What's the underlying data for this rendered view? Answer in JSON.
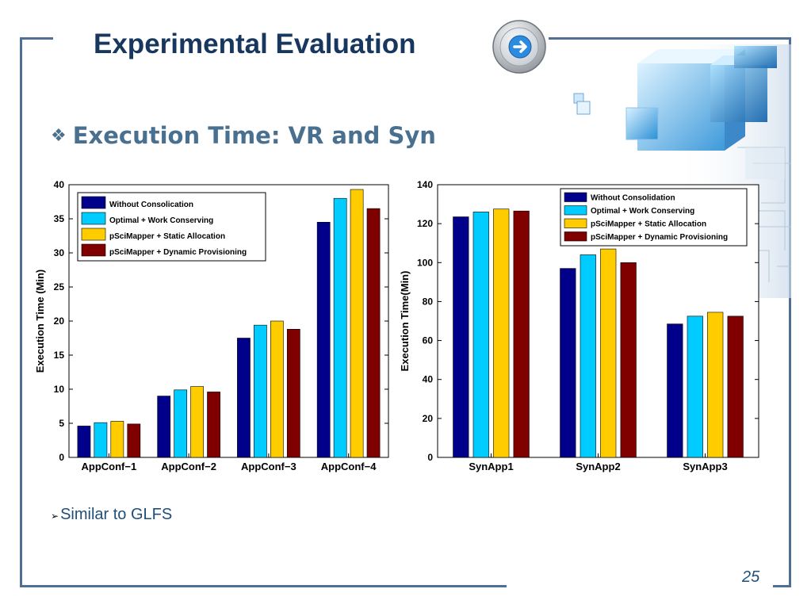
{
  "slide": {
    "title": "Experimental Evaluation",
    "bullet_glyph": "❖",
    "heading": "Execution Time: VR and Syn",
    "sub_bullet_glyph": "➢",
    "sub_bullet": "Similar to GLFS",
    "page_number": "25",
    "accent_color": "#17375e",
    "frame_color": "#4f6f97"
  },
  "icons": {
    "arrow_button": "right-arrow-icon",
    "decoration": "blue-cubes-decoration"
  },
  "chart_data": [
    {
      "type": "bar",
      "title": "",
      "xlabel": "",
      "ylabel": "Execution Time (Min)",
      "ylim": [
        0,
        40
      ],
      "yticks": [
        0,
        5,
        10,
        15,
        20,
        25,
        30,
        35,
        40
      ],
      "grid": false,
      "legend_position": "top-left",
      "categories": [
        "AppConf−1",
        "AppConf−2",
        "AppConf−3",
        "AppConf−4"
      ],
      "series": [
        {
          "name": "Without Consolication",
          "color": "#00008b",
          "values": [
            4.6,
            9.0,
            17.5,
            34.5
          ]
        },
        {
          "name": "Optimal +  Work Conserving",
          "color": "#00ccff",
          "values": [
            5.1,
            9.9,
            19.4,
            38.0
          ]
        },
        {
          "name": "pSciMapper + Static Allocation",
          "color": "#ffcc00",
          "values": [
            5.3,
            10.4,
            20.0,
            39.3
          ]
        },
        {
          "name": "pSciMapper + Dynamic Provisioning",
          "color": "#800000",
          "values": [
            4.9,
            9.6,
            18.8,
            36.5
          ]
        }
      ]
    },
    {
      "type": "bar",
      "title": "",
      "xlabel": "",
      "ylabel": "Execution Time(Min)",
      "ylim": [
        0,
        140
      ],
      "yticks": [
        0,
        20,
        40,
        60,
        80,
        100,
        120,
        140
      ],
      "grid": false,
      "legend_position": "top-right",
      "categories": [
        "SynApp1",
        "SynApp2",
        "SynApp3"
      ],
      "series": [
        {
          "name": "Without Consolidation",
          "color": "#00008b",
          "values": [
            123.5,
            97.0,
            68.5
          ]
        },
        {
          "name": "Optimal + Work Conserving",
          "color": "#00ccff",
          "values": [
            126.0,
            104.0,
            72.5
          ]
        },
        {
          "name": "pSciMapper + Static Allocation",
          "color": "#ffcc00",
          "values": [
            127.5,
            107.0,
            74.5
          ]
        },
        {
          "name": "pSciMapper + Dynamic Provisioning",
          "color": "#800000",
          "values": [
            126.5,
            100.0,
            72.5
          ]
        }
      ]
    }
  ]
}
